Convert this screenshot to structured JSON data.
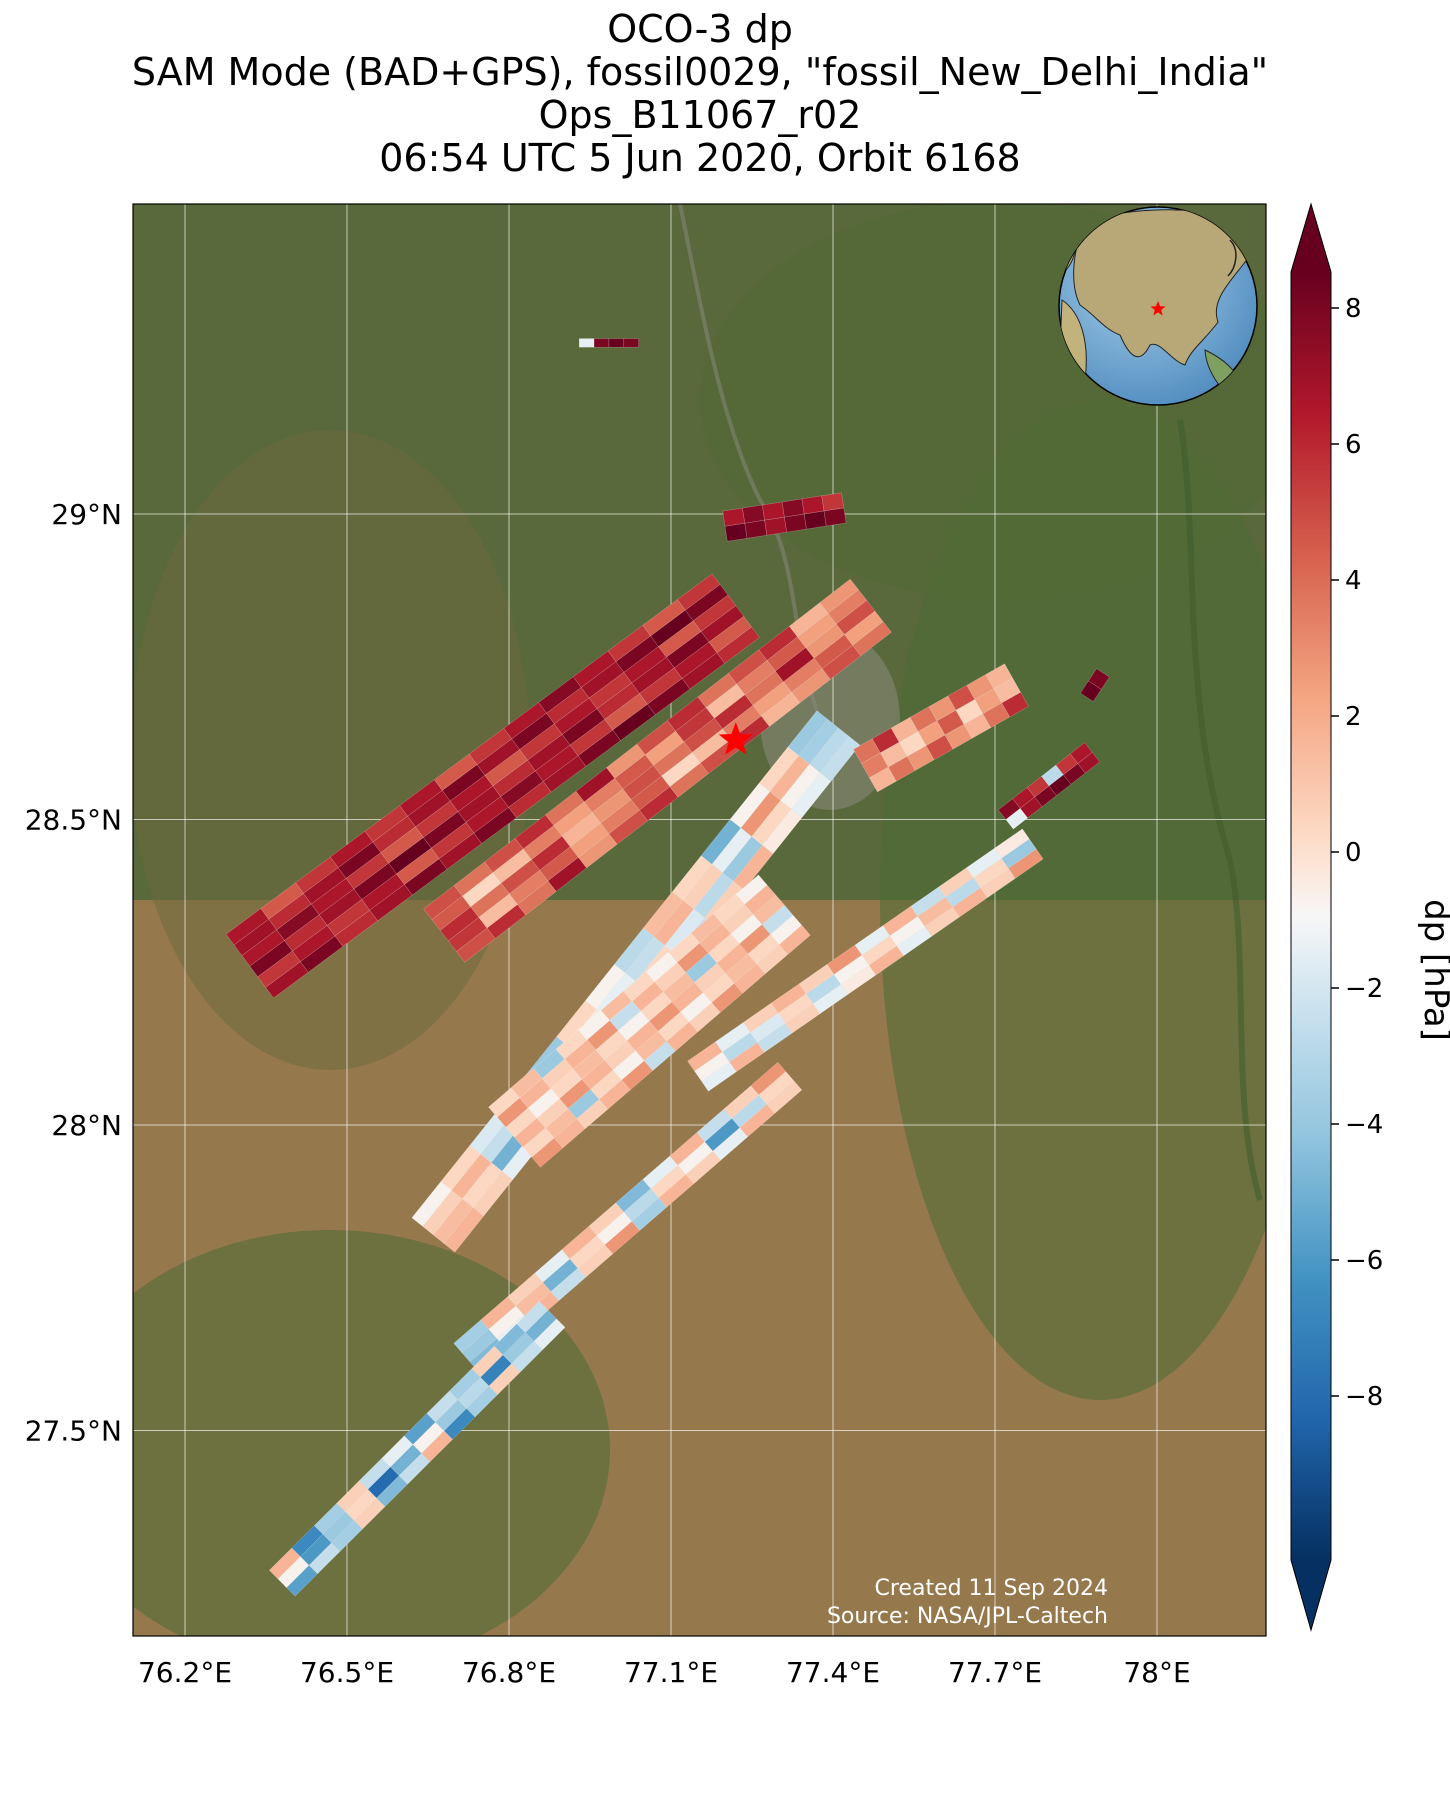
{
  "title": {
    "line1": "OCO-3 dp",
    "line2": "SAM Mode (BAD+GPS), fossil0029, \"fossil_New_Delhi_India\"",
    "line3": "Ops_B11067_r02",
    "line4": "06:54 UTC 5 Jun 2020, Orbit 6168"
  },
  "axes": {
    "x_ticks": [
      {
        "value": 76.2,
        "label": "76.2°E"
      },
      {
        "value": 76.5,
        "label": "76.5°E"
      },
      {
        "value": 76.8,
        "label": "76.8°E"
      },
      {
        "value": 77.1,
        "label": "77.1°E"
      },
      {
        "value": 77.4,
        "label": "77.4°E"
      },
      {
        "value": 77.7,
        "label": "77.7°E"
      },
      {
        "value": 78.0,
        "label": "78°E"
      }
    ],
    "y_ticks": [
      {
        "value": 29.0,
        "label": "29°N"
      },
      {
        "value": 28.5,
        "label": "28.5°N"
      },
      {
        "value": 28.0,
        "label": "28°N"
      },
      {
        "value": 27.5,
        "label": "27.5°N"
      }
    ],
    "lon_range": [
      76.1,
      78.2
    ],
    "lat_range": [
      27.05,
      29.5
    ],
    "grid": true
  },
  "colorbar": {
    "label": "dp [hPa]",
    "range": [
      -9,
      9
    ],
    "ticks": [
      {
        "value": 8,
        "label": "8"
      },
      {
        "value": 6,
        "label": "6"
      },
      {
        "value": 4,
        "label": "4"
      },
      {
        "value": 2,
        "label": "2"
      },
      {
        "value": 0,
        "label": "0"
      },
      {
        "value": -2,
        "label": "−2"
      },
      {
        "value": -4,
        "label": "−4"
      },
      {
        "value": -6,
        "label": "−6"
      },
      {
        "value": -8,
        "label": "−8"
      }
    ],
    "extend": "both",
    "colormap": "RdBu_r"
  },
  "target": {
    "name": "New Delhi",
    "lon": 77.22,
    "lat": 28.63,
    "marker": "red-star-icon"
  },
  "inset_globe": {
    "marker": "red-star-icon",
    "region": "Asia"
  },
  "credits": {
    "created": "Created 11 Sep 2024",
    "source": "Source: NASA/JPL-Caltech"
  },
  "chart_data": {
    "type": "heatmap",
    "variable": "dp",
    "units": "hPa",
    "swaths": [
      {
        "name": "swath-north-tail",
        "lon_start": 76.93,
        "lat_start": 29.28,
        "lon_end": 77.04,
        "lat_end": 29.28,
        "width_deg": 0.014,
        "values": [
          -1,
          8,
          9,
          8
        ]
      },
      {
        "name": "swath-north-top",
        "lon_start": 77.2,
        "lat_start": 28.98,
        "lon_end": 77.42,
        "lat_end": 29.01,
        "width_deg": 0.05,
        "values": [
          9,
          8,
          7,
          8,
          9,
          8
        ]
      },
      {
        "name": "swath-1",
        "lon_start": 76.32,
        "lat_start": 28.26,
        "lon_end": 77.22,
        "lat_end": 28.85,
        "width_deg": 0.13,
        "values": [
          7,
          8,
          6,
          7,
          8,
          7,
          8,
          6,
          7,
          8,
          9,
          8,
          7,
          6
        ]
      },
      {
        "name": "swath-2",
        "lon_start": 76.68,
        "lat_start": 28.31,
        "lon_end": 77.47,
        "lat_end": 28.85,
        "width_deg": 0.11,
        "values": [
          5,
          6,
          4,
          7,
          3,
          5,
          6,
          4,
          5,
          6,
          2,
          3,
          5,
          4
        ]
      },
      {
        "name": "swath-3",
        "lon_start": 76.66,
        "lat_start": 27.82,
        "lon_end": 77.41,
        "lat_end": 28.65,
        "width_deg": 0.09,
        "values": [
          2,
          1,
          -1,
          3,
          2,
          -3,
          1,
          2,
          -2,
          1,
          2,
          0,
          -1,
          -2
        ]
      },
      {
        "name": "swath-4",
        "lon_start": 76.81,
        "lat_start": 27.98,
        "lon_end": 77.31,
        "lat_end": 28.36,
        "width_deg": 0.13,
        "values": [
          3,
          2,
          1,
          2,
          3,
          -2,
          2,
          1,
          3,
          2,
          1,
          2
        ]
      },
      {
        "name": "swath-5",
        "lon_start": 76.72,
        "lat_start": 27.62,
        "lon_end": 77.32,
        "lat_end": 28.08,
        "width_deg": 0.06,
        "values": [
          -4,
          -1,
          2,
          -2,
          1,
          3,
          -3,
          2,
          1,
          -1,
          2,
          1
        ]
      },
      {
        "name": "swath-6",
        "lon_start": 77.15,
        "lat_start": 28.08,
        "lon_end": 77.77,
        "lat_end": 28.46,
        "width_deg": 0.06,
        "values": [
          -1,
          2,
          -2,
          1,
          -1,
          0,
          2,
          -1,
          1,
          2,
          1,
          3
        ]
      },
      {
        "name": "swath-7",
        "lon_start": 76.38,
        "lat_start": 27.25,
        "lon_end": 76.88,
        "lat_end": 27.69,
        "width_deg": 0.06,
        "values": [
          -5,
          -2,
          -3,
          1,
          -4,
          -2,
          2,
          -6,
          -3,
          1,
          -2,
          -1
        ]
      },
      {
        "name": "swath-8",
        "lon_start": 77.46,
        "lat_start": 28.58,
        "lon_end": 77.74,
        "lat_end": 28.72,
        "width_deg": 0.08,
        "values": [
          2,
          4,
          3,
          5,
          3,
          2,
          4,
          6
        ]
      },
      {
        "name": "swath-9",
        "lon_start": 77.72,
        "lat_start": 28.5,
        "lon_end": 77.88,
        "lat_end": 28.61,
        "width_deg": 0.04,
        "values": [
          -1,
          7,
          8,
          9,
          8,
          7
        ]
      },
      {
        "name": "swath-east-patch",
        "lon_start": 77.87,
        "lat_start": 28.7,
        "lon_end": 77.9,
        "lat_end": 28.74,
        "width_deg": 0.025,
        "values": [
          9,
          8
        ]
      }
    ]
  }
}
